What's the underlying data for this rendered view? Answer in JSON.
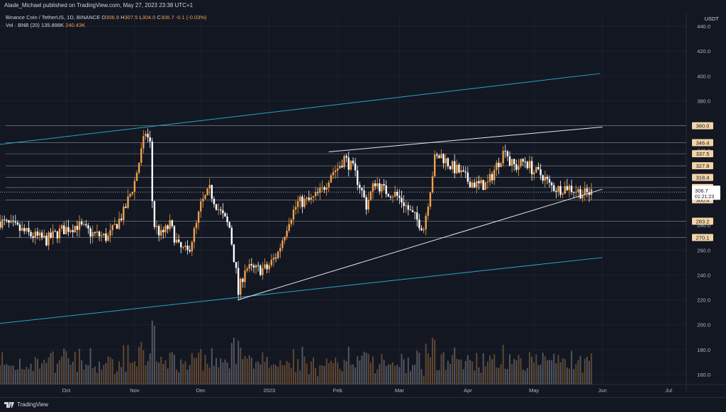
{
  "header": {
    "published": "Alade_Michael published on TradingView.com, May 27, 2023 23:38 UTC+1"
  },
  "legend": {
    "symbol": "Binance Coin / TetherUS, 1D, BINANCE",
    "o_label": "O",
    "o": "306.9",
    "h_label": "H",
    "h": "307.5",
    "l_label": "L",
    "l": "304.0",
    "c_label": "C",
    "c": "306.7",
    "change": "-0.1 (-0.03%)",
    "vol_label": "Vol · BNB (20)",
    "vol_ma": "135.898K",
    "vol": "240.43K"
  },
  "footer": {
    "brand": "TradingView"
  },
  "colors": {
    "up": "#f0a04b",
    "down": "#ffffff",
    "teal": "#26a6c4",
    "bg": "#131722",
    "grid": "#2a2e39"
  },
  "chart_data": {
    "type": "candlestick",
    "ylabel": "USDT",
    "ylim": [
      152,
      448
    ],
    "y_ticks": [
      160.0,
      180.0,
      200.0,
      220.0,
      240.0,
      260.0,
      280.0,
      300.0,
      320.0,
      340.0,
      360.0,
      380.0,
      400.0,
      420.0,
      440.0
    ],
    "x_ticks": [
      {
        "label": "Oct",
        "date": "2022-10-01"
      },
      {
        "label": "Nov",
        "date": "2022-11-01"
      },
      {
        "label": "Dec",
        "date": "2022-12-01"
      },
      {
        "label": "2023",
        "date": "2023-01-01"
      },
      {
        "label": "Feb",
        "date": "2023-02-01"
      },
      {
        "label": "Mar",
        "date": "2023-03-01"
      },
      {
        "label": "Apr",
        "date": "2023-04-01"
      },
      {
        "label": "May",
        "date": "2023-05-01"
      },
      {
        "label": "Jun",
        "date": "2023-06-01"
      },
      {
        "label": "Jul",
        "date": "2023-07-01"
      }
    ],
    "x_range": [
      "2022-09-01",
      "2023-07-09"
    ],
    "price_labels": [
      "360.0",
      "346.4",
      "337.5",
      "327.8",
      "318.4",
      "310.3",
      "300.4",
      "283.2",
      "270.1"
    ],
    "horizontal_levels": [
      360.0,
      346.4,
      337.5,
      327.8,
      318.4,
      310.3,
      300.4,
      283.2,
      270.1
    ],
    "current_price": {
      "value": "306.7",
      "countdown": "01:21:23"
    },
    "trendlines": [
      {
        "color": "teal",
        "from": [
          "2022-09-01",
          345
        ],
        "to": [
          "2023-05-31",
          402
        ]
      },
      {
        "color": "teal",
        "from": [
          "2022-09-01",
          201
        ],
        "to": [
          "2023-06-01",
          254
        ]
      },
      {
        "color": "white",
        "from": [
          "2022-12-18",
          220
        ],
        "to": [
          "2023-06-01",
          309
        ]
      },
      {
        "color": "white",
        "from": [
          "2023-01-28",
          339
        ],
        "to": [
          "2023-06-01",
          359
        ]
      }
    ],
    "price_path": [
      [
        "2022-09-01",
        283
      ],
      [
        "2022-09-08",
        278
      ],
      [
        "2022-09-15",
        272
      ],
      [
        "2022-09-22",
        268
      ],
      [
        "2022-09-29",
        276
      ],
      [
        "2022-10-06",
        280
      ],
      [
        "2022-10-13",
        273
      ],
      [
        "2022-10-20",
        270
      ],
      [
        "2022-10-27",
        290
      ],
      [
        "2022-11-01",
        315
      ],
      [
        "2022-11-06",
        355
      ],
      [
        "2022-11-08",
        345
      ],
      [
        "2022-11-09",
        300
      ],
      [
        "2022-11-10",
        280
      ],
      [
        "2022-11-13",
        272
      ],
      [
        "2022-11-17",
        280
      ],
      [
        "2022-11-21",
        262
      ],
      [
        "2022-11-25",
        258
      ],
      [
        "2022-11-29",
        280
      ],
      [
        "2022-12-01",
        296
      ],
      [
        "2022-12-05",
        308
      ],
      [
        "2022-12-09",
        293
      ],
      [
        "2022-12-14",
        278
      ],
      [
        "2022-12-17",
        242
      ],
      [
        "2022-12-18",
        225
      ],
      [
        "2022-12-21",
        246
      ],
      [
        "2022-12-25",
        244
      ],
      [
        "2022-12-31",
        245
      ],
      [
        "2023-01-05",
        258
      ],
      [
        "2023-01-10",
        285
      ],
      [
        "2023-01-14",
        298
      ],
      [
        "2023-01-20",
        300
      ],
      [
        "2023-01-25",
        308
      ],
      [
        "2023-01-29",
        322
      ],
      [
        "2023-02-01",
        326
      ],
      [
        "2023-02-04",
        334
      ],
      [
        "2023-02-08",
        325
      ],
      [
        "2023-02-11",
        312
      ],
      [
        "2023-02-14",
        296
      ],
      [
        "2023-02-18",
        315
      ],
      [
        "2023-02-22",
        308
      ],
      [
        "2023-02-27",
        305
      ],
      [
        "2023-03-03",
        298
      ],
      [
        "2023-03-06",
        290
      ],
      [
        "2023-03-10",
        282
      ],
      [
        "2023-03-12",
        278
      ],
      [
        "2023-03-15",
        310
      ],
      [
        "2023-03-17",
        333
      ],
      [
        "2023-03-20",
        336
      ],
      [
        "2023-03-24",
        328
      ],
      [
        "2023-03-28",
        323
      ],
      [
        "2023-04-01",
        316
      ],
      [
        "2023-04-06",
        312
      ],
      [
        "2023-04-10",
        313
      ],
      [
        "2023-04-14",
        328
      ],
      [
        "2023-04-17",
        338
      ],
      [
        "2023-04-18",
        344
      ],
      [
        "2023-04-20",
        330
      ],
      [
        "2023-04-23",
        327
      ],
      [
        "2023-04-27",
        332
      ],
      [
        "2023-05-01",
        323
      ],
      [
        "2023-05-05",
        320
      ],
      [
        "2023-05-08",
        312
      ],
      [
        "2023-05-12",
        309
      ],
      [
        "2023-05-16",
        311
      ],
      [
        "2023-05-20",
        308
      ],
      [
        "2023-05-24",
        305
      ],
      [
        "2023-05-27",
        306.7
      ]
    ]
  }
}
